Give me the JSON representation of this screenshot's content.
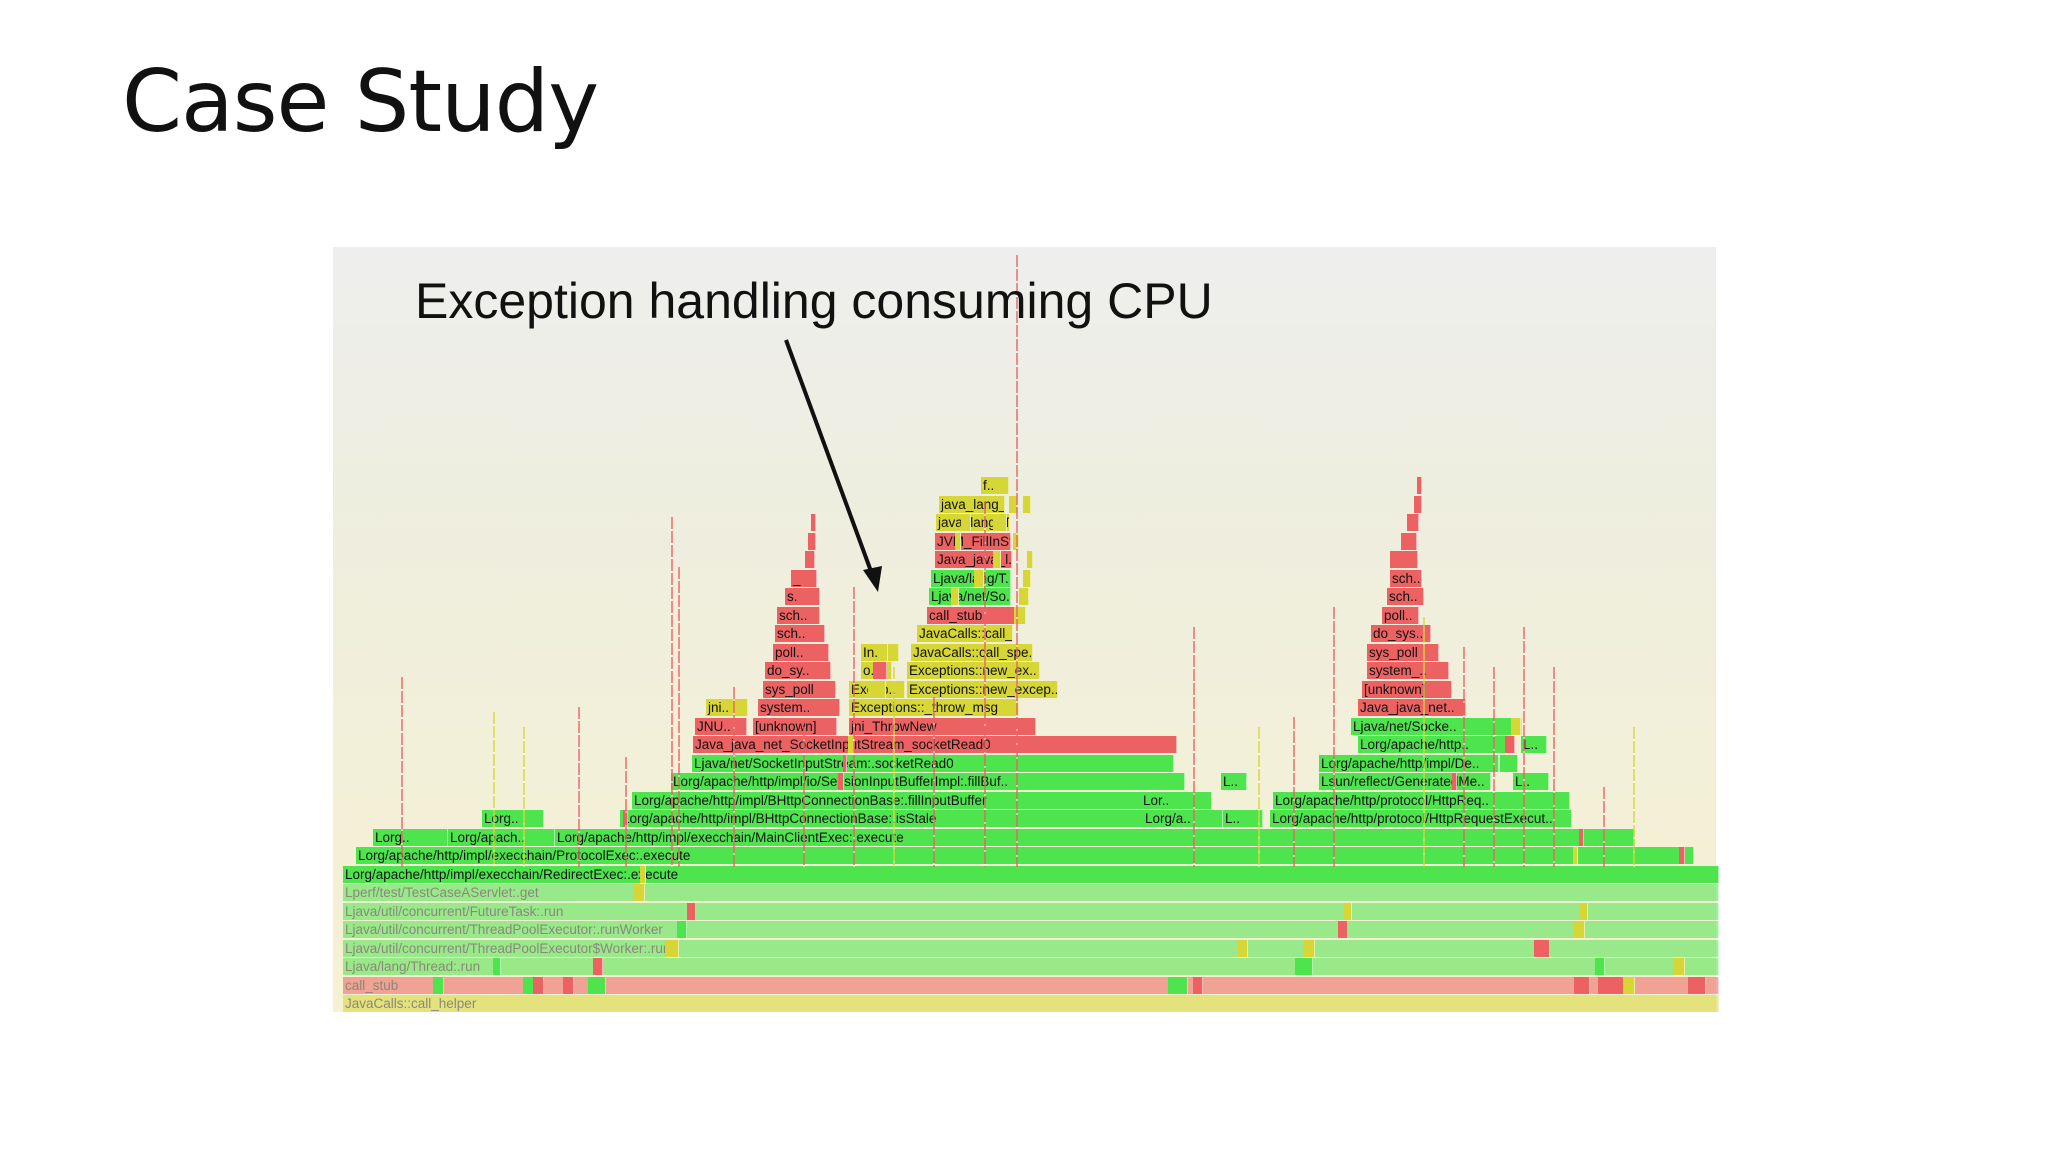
{
  "slide": {
    "title": "Case Study"
  },
  "annotation": {
    "text": "Exception handling consuming CPU"
  },
  "colors": {
    "green": "#4ee44e",
    "yellow": "#d6d637",
    "red": "#ec6262",
    "arrow": "#111111"
  },
  "flamegraph": {
    "frames": [
      {
        "label": "JavaCalls::call_helper",
        "color": "yellow",
        "faded": true
      },
      {
        "label": "call_stub",
        "color": "red",
        "faded": true
      },
      {
        "label": "Ljava/lang/Thread:.run",
        "color": "green",
        "faded": true
      },
      {
        "label": "Ljava/util/concurrent/ThreadPoolExecutor$Worker:.run",
        "color": "green",
        "faded": true
      },
      {
        "label": "Ljava/util/concurrent/ThreadPoolExecutor:.runWorker",
        "color": "green",
        "faded": true
      },
      {
        "label": "Ljava/util/concurrent/FutureTask:.run",
        "color": "green",
        "faded": true
      },
      {
        "label": "Lperf/test/TestCaseAServlet:.get",
        "color": "green",
        "faded": true
      },
      {
        "label": "Lorg/apache/http/impl/execchain/RedirectExec:.execute",
        "color": "green"
      },
      {
        "label": "Lorg/apache/http/impl/execchain/ProtocolExec:.execute",
        "color": "green"
      },
      {
        "label": "Lorg..",
        "color": "green"
      },
      {
        "label": "Lorg/apach..",
        "color": "green"
      },
      {
        "label": "Lorg/apache/http/impl/execchain/MainClientExec:.execute",
        "color": "green"
      },
      {
        "label": "Lorg..",
        "color": "green"
      },
      {
        "label": "Lorg/apache/http/impl/BHttpConnectionBase:.isStale",
        "color": "green"
      },
      {
        "label": "Lorg/a..",
        "color": "green"
      },
      {
        "label": "L..",
        "color": "green"
      },
      {
        "label": "Lorg/apache/http/protocol/HttpRequestExecut..",
        "color": "green"
      },
      {
        "label": "Lorg/apache/http/impl/BHttpConnectionBase:.fillInputBuffer",
        "color": "green"
      },
      {
        "label": "Lor..",
        "color": "green"
      },
      {
        "label": "Lorg/apache/http/protocol/HttpReq..",
        "color": "green"
      },
      {
        "label": "Lorg/apache/http/impl/io/SessionInputBufferImpl:.fillBuf..",
        "color": "green"
      },
      {
        "label": "L..",
        "color": "green"
      },
      {
        "label": "Lsun/reflect/GeneratedMe..",
        "color": "green"
      },
      {
        "label": "L..",
        "color": "green"
      },
      {
        "label": "Ljava/net/SocketInputStream:.socketRead0",
        "color": "green"
      },
      {
        "label": "Lorg/apache/http/impl/De..",
        "color": "green"
      },
      {
        "label": "Java_java_net_SocketInputStream_socketRead0",
        "color": "red"
      },
      {
        "label": "Lorg/apache/http..",
        "color": "green"
      },
      {
        "label": "L..",
        "color": "green"
      },
      {
        "label": "JNU..",
        "color": "red"
      },
      {
        "label": "[unknown]",
        "color": "red"
      },
      {
        "label": "jni_ThrowNew",
        "color": "red"
      },
      {
        "label": "Ljava/net/Socke..",
        "color": "green"
      },
      {
        "label": "jni..",
        "color": "yellow"
      },
      {
        "label": "system..",
        "color": "red"
      },
      {
        "label": "Exceptions::_throw_msg",
        "color": "yellow"
      },
      {
        "label": "Java_java_net..",
        "color": "red"
      },
      {
        "label": "sys_poll",
        "color": "red"
      },
      {
        "label": "Excep..",
        "color": "yellow"
      },
      {
        "label": "Exceptions::new_excep..",
        "color": "yellow"
      },
      {
        "label": "[unknown]",
        "color": "red"
      },
      {
        "label": "do_sy..",
        "color": "red"
      },
      {
        "label": "o..",
        "color": "yellow"
      },
      {
        "label": "Exceptions::new_ex..",
        "color": "yellow"
      },
      {
        "label": "system_..",
        "color": "red"
      },
      {
        "label": "poll..",
        "color": "red"
      },
      {
        "label": "In..",
        "color": "yellow"
      },
      {
        "label": "JavaCalls::call_spe..",
        "color": "yellow"
      },
      {
        "label": "sys_poll",
        "color": "red"
      },
      {
        "label": "sch..",
        "color": "red"
      },
      {
        "label": "JavaCalls::call_..",
        "color": "yellow"
      },
      {
        "label": "do_sys..",
        "color": "red"
      },
      {
        "label": "sch..",
        "color": "red"
      },
      {
        "label": "call_stub",
        "color": "red"
      },
      {
        "label": "poll..",
        "color": "red"
      },
      {
        "label": "s..",
        "color": "red"
      },
      {
        "label": "Ljava/net/So..",
        "color": "green"
      },
      {
        "label": "sch..",
        "color": "red"
      },
      {
        "label": "_..",
        "color": "red"
      },
      {
        "label": "Ljava/lang/T..",
        "color": "green"
      },
      {
        "label": "sch..",
        "color": "red"
      },
      {
        "label": "Java_java_l..",
        "color": "red"
      },
      {
        "label": "JVM_FillInSt..",
        "color": "red"
      },
      {
        "label": "java_lang_T..",
        "color": "yellow"
      },
      {
        "label": "java_lang_..",
        "color": "yellow"
      },
      {
        "label": "f..",
        "color": "yellow"
      }
    ]
  }
}
